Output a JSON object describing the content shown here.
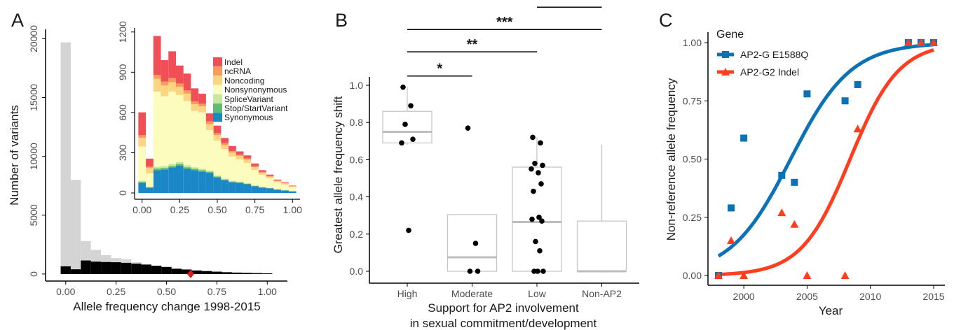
{
  "panel_labels": {
    "a": "A",
    "b": "B",
    "c": "C"
  },
  "colors": {
    "all_variants": "#d4d4d4",
    "subset_variants": "#000000",
    "marker": "#e31a1c",
    "box_stroke": "#c6c6c6",
    "box_median": "#bdbdbd",
    "ap2g": "#0b72b5",
    "ap2g2": "#ff3d1f",
    "Indel": "#f14f57",
    "ncRNA": "#fb9a5a",
    "Noncoding": "#fcd583",
    "Nonsynonymous": "#fbfcbd",
    "SpliceVariant": "#c6e99d",
    "Stop/StartVariant": "#5fbc72",
    "Synonymous": "#1a88c6"
  },
  "chart_data": [
    {
      "panel": "A",
      "type": "bar",
      "xlabel": "Allele frequency change 1998-2015",
      "ylabel": "Number of variants",
      "xlim": [
        -0.1,
        1.1
      ],
      "ylim": [
        -600,
        20800
      ],
      "x_ticks": [
        "0.00",
        "0.25",
        "0.50",
        "0.75",
        "1.00"
      ],
      "y_ticks": [
        "0",
        "5000",
        "10000",
        "15000",
        "20000"
      ],
      "bin_width": 0.05,
      "bin_starts": [
        -0.025,
        0.025,
        0.075,
        0.125,
        0.175,
        0.225,
        0.275,
        0.325,
        0.375,
        0.425,
        0.475,
        0.525,
        0.575,
        0.625,
        0.675,
        0.725,
        0.775,
        0.825,
        0.875,
        0.925,
        0.975
      ],
      "series": [
        {
          "color_key": "all_variants",
          "values": [
            19700,
            8000,
            2800,
            2050,
            1600,
            1350,
            1250,
            1000,
            850,
            700,
            600,
            450,
            400,
            300,
            250,
            200,
            150,
            120,
            100,
            80,
            60
          ]
        },
        {
          "color_key": "subset_variants",
          "values": [
            650,
            400,
            1150,
            1050,
            1020,
            1000,
            950,
            880,
            800,
            700,
            600,
            450,
            380,
            300,
            250,
            200,
            150,
            120,
            100,
            80,
            60
          ]
        }
      ],
      "marker": {
        "x": 0.62,
        "y": 0,
        "shape": "diamond"
      }
    },
    {
      "panel": "A-inset",
      "type": "bar",
      "stacked": true,
      "xlim": [
        -0.05,
        1.05
      ],
      "ylim": [
        0,
        1230
      ],
      "x_ticks": [
        "0.00",
        "0.25",
        "0.50",
        "0.75",
        "1.00"
      ],
      "y_ticks": [
        "0",
        "300",
        "600",
        "900",
        "1200"
      ],
      "bin_width": 0.05,
      "bin_starts": [
        -0.025,
        0.025,
        0.075,
        0.125,
        0.175,
        0.225,
        0.275,
        0.325,
        0.375,
        0.425,
        0.475,
        0.525,
        0.575,
        0.625,
        0.675,
        0.725,
        0.775,
        0.825,
        0.875,
        0.925,
        0.975
      ],
      "legend": {
        "position": "top-right"
      },
      "series": [
        {
          "name": "Synonymous",
          "color_key": "Synonymous",
          "values": [
            75,
            40,
            170,
            175,
            190,
            205,
            180,
            170,
            160,
            150,
            115,
            95,
            80,
            75,
            65,
            50,
            40,
            35,
            25,
            18,
            12
          ]
        },
        {
          "name": "Stop/StartVariant",
          "color_key": "Stop/StartVariant",
          "values": [
            8,
            3,
            12,
            12,
            12,
            12,
            12,
            10,
            10,
            8,
            8,
            6,
            5,
            5,
            4,
            3,
            3,
            2,
            2,
            2,
            1
          ]
        },
        {
          "name": "SpliceVariant",
          "color_key": "SpliceVariant",
          "values": [
            8,
            3,
            14,
            14,
            14,
            14,
            14,
            12,
            10,
            10,
            8,
            6,
            6,
            5,
            4,
            4,
            3,
            3,
            2,
            2,
            1
          ]
        },
        {
          "name": "Nonsynonymous",
          "color_key": "Nonsynonymous",
          "values": [
            255,
            100,
            560,
            520,
            540,
            500,
            480,
            420,
            420,
            300,
            260,
            220,
            180,
            165,
            150,
            115,
            90,
            70,
            50,
            40,
            30
          ]
        },
        {
          "name": "Noncoding",
          "color_key": "Noncoding",
          "values": [
            65,
            40,
            95,
            80,
            70,
            60,
            55,
            50,
            45,
            45,
            40,
            30,
            30,
            25,
            25,
            20,
            15,
            12,
            10,
            10,
            5
          ]
        },
        {
          "name": "ncRNA",
          "color_key": "ncRNA",
          "values": [
            20,
            10,
            30,
            30,
            30,
            25,
            25,
            20,
            20,
            20,
            15,
            15,
            12,
            10,
            10,
            8,
            6,
            5,
            5,
            4,
            3
          ]
        },
        {
          "name": "Indel",
          "color_key": "Indel",
          "values": [
            170,
            60,
            289,
            159,
            200,
            134,
            124,
            98,
            75,
            60,
            56,
            38,
            37,
            25,
            22,
            20,
            13,
            10,
            6,
            4,
            3
          ]
        }
      ]
    },
    {
      "panel": "B",
      "type": "box",
      "xlabel": "Support for AP2 involvement\nin sexual commitment/development",
      "ylabel": "Greatest allele frequency shift",
      "categories": [
        "High",
        "Moderate",
        "Low",
        "Non-AP2"
      ],
      "ylim": [
        -0.05,
        1.05
      ],
      "y_ticks": [
        "0.0",
        "0.2",
        "0.4",
        "0.6",
        "0.8",
        "1.0"
      ],
      "boxes": [
        {
          "q1": 0.69,
          "median": 0.75,
          "q3": 0.86,
          "whisker_low": 0.68,
          "whisker_high": 0.99
        },
        {
          "q1": 0.0,
          "median": 0.075,
          "q3": 0.305,
          "whisker_low": 0.0,
          "whisker_high": 0.305
        },
        {
          "q1": 0.0,
          "median": 0.265,
          "q3": 0.56,
          "whisker_low": 0.0,
          "whisker_high": 0.72
        },
        {
          "q1": 0.0,
          "median": 0.0,
          "q3": 0.27,
          "whisker_low": 0.0,
          "whisker_high": 0.68
        }
      ],
      "points": [
        {
          "category": 0,
          "values": [
            0.99,
            0.89,
            0.79,
            0.71,
            0.69,
            0.22
          ]
        },
        {
          "category": 1,
          "values": [
            0.77,
            0.15,
            0.0,
            0.0
          ]
        },
        {
          "category": 2,
          "values": [
            0.72,
            0.69,
            0.58,
            0.57,
            0.55,
            0.53,
            0.47,
            0.43,
            0.29,
            0.28,
            0.27,
            0.16,
            0.11,
            0.0,
            0.0,
            0.0
          ]
        }
      ],
      "significance": [
        {
          "from": 0,
          "to": 1,
          "label": "*",
          "y": 1.05
        },
        {
          "from": 0,
          "to": 2,
          "label": "**",
          "y": 1.18
        },
        {
          "from": 0,
          "to": 3,
          "label": "***",
          "y": 1.3
        },
        {
          "from": 2,
          "to": 3,
          "label": "*",
          "y": 1.42
        }
      ]
    },
    {
      "panel": "C",
      "type": "scatter",
      "xlabel": "Year",
      "ylabel": "Non-reference allele frequency",
      "xlim": [
        1997.3,
        2015.7
      ],
      "ylim": [
        -0.03,
        1.05
      ],
      "x_ticks": [
        "2000",
        "2005",
        "2010",
        "2015"
      ],
      "y_ticks": [
        "0.00",
        "0.25",
        "0.50",
        "0.75",
        "1.00"
      ],
      "legend": {
        "title": "Gene",
        "position": "top-left"
      },
      "series": [
        {
          "name": "AP2-G E1588Q",
          "color_key": "ap2g",
          "marker": "square",
          "points": [
            [
              1998,
              0.0
            ],
            [
              1999,
              0.29
            ],
            [
              2000,
              0.59
            ],
            [
              2003,
              0.43
            ],
            [
              2004,
              0.4
            ],
            [
              2005,
              0.78
            ],
            [
              2008,
              0.75
            ],
            [
              2009,
              0.82
            ],
            [
              2013,
              1.0
            ],
            [
              2014,
              1.0
            ],
            [
              2015,
              1.0
            ]
          ],
          "fit": {
            "x0": 2003.7,
            "k": 0.42
          }
        },
        {
          "name": "AP2-G2 Indel",
          "color_key": "ap2g2",
          "marker": "triangle",
          "points": [
            [
              1998,
              0.0
            ],
            [
              1999,
              0.15
            ],
            [
              2000,
              0.0
            ],
            [
              2003,
              0.27
            ],
            [
              2004,
              0.22
            ],
            [
              2005,
              0.0
            ],
            [
              2008,
              0.0
            ],
            [
              2009,
              0.63
            ],
            [
              2013,
              1.0
            ],
            [
              2014,
              1.0
            ],
            [
              2015,
              1.0
            ]
          ],
          "fit": {
            "x0": 2008.4,
            "k": 0.52
          }
        }
      ]
    }
  ]
}
